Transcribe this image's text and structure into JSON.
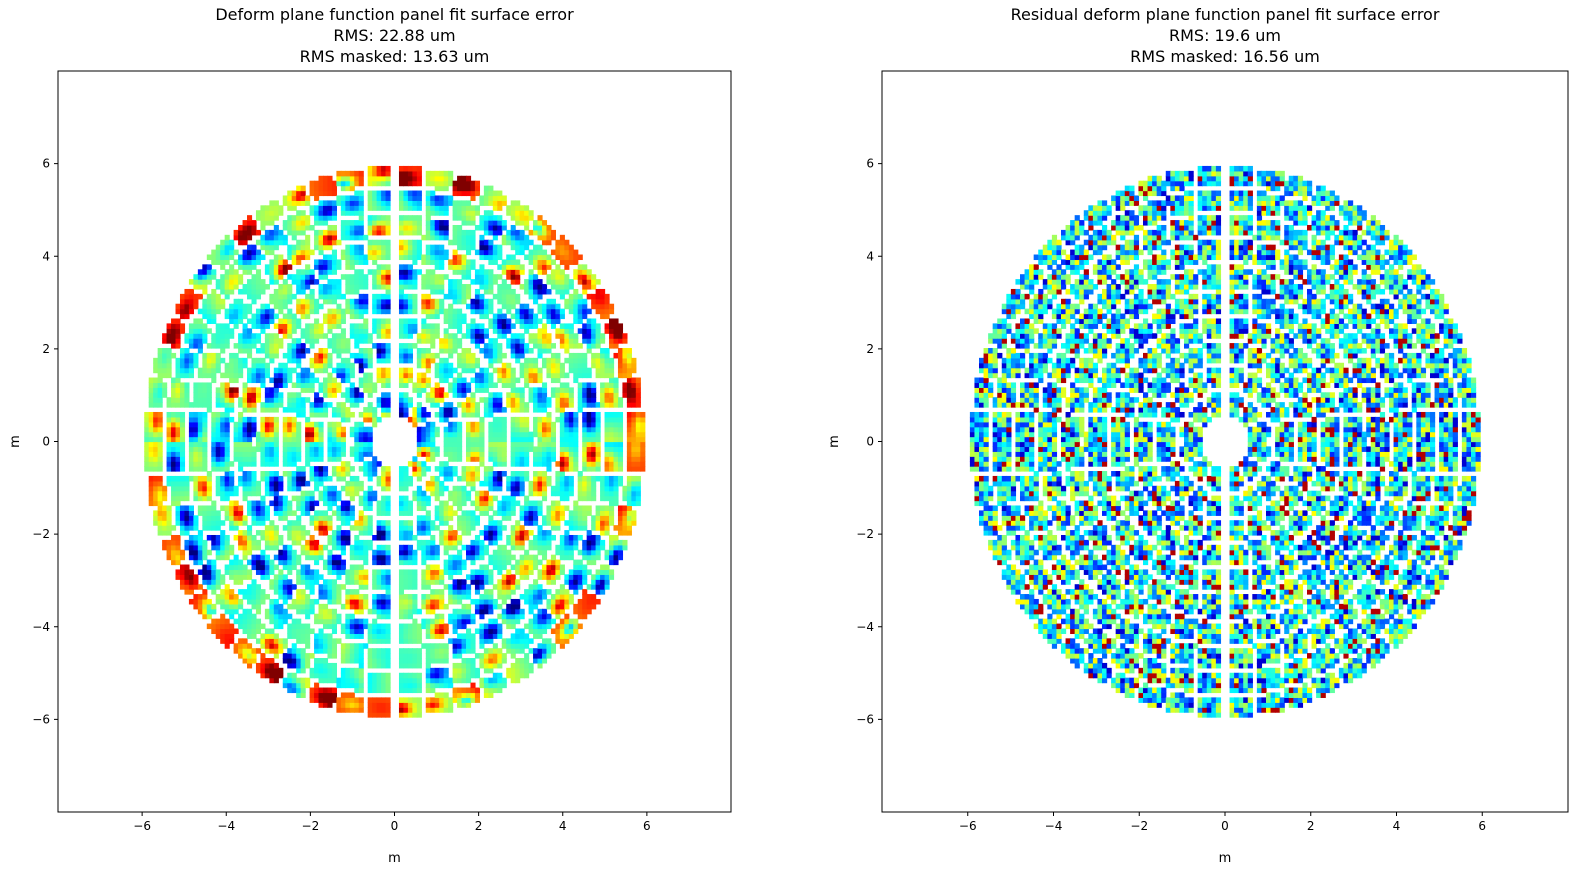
{
  "chart_data": [
    {
      "type": "heatmap",
      "title_lines": [
        "Deform plane function panel fit surface error",
        "RMS: 22.88 um",
        "RMS masked: 13.63 um"
      ],
      "xlabel": "m",
      "ylabel": "m",
      "xlim": [
        -8,
        8
      ],
      "ylim": [
        -8,
        8
      ],
      "xticks": [
        -6,
        -4,
        -2,
        0,
        2,
        4,
        6
      ],
      "yticks": [
        -6,
        -4,
        -2,
        0,
        2,
        4,
        6
      ],
      "xtick_labels": [
        "−6",
        "−4",
        "−2",
        "0",
        "2",
        "4",
        "6"
      ],
      "ytick_labels": [
        "−6",
        "−4",
        "−2",
        "0",
        "2",
        "4",
        "6"
      ],
      "grid": false,
      "colormap": "jet",
      "pattern": "smooth",
      "rings": [
        {
          "r_in": 0.55,
          "r_out": 1.05,
          "panels": 12
        },
        {
          "r_in": 1.15,
          "r_out": 1.6,
          "panels": 20
        },
        {
          "r_in": 1.7,
          "r_out": 2.15,
          "panels": 24
        },
        {
          "r_in": 2.25,
          "r_out": 2.7,
          "panels": 28
        },
        {
          "r_in": 2.8,
          "r_out": 3.25,
          "panels": 32
        },
        {
          "r_in": 3.35,
          "r_out": 3.8,
          "panels": 36
        },
        {
          "r_in": 3.9,
          "r_out": 4.35,
          "panels": 40
        },
        {
          "r_in": 4.45,
          "r_out": 4.9,
          "panels": 44
        },
        {
          "r_in": 5.0,
          "r_out": 5.45,
          "panels": 48
        },
        {
          "r_in": 5.55,
          "r_out": 5.95,
          "panels": 52
        }
      ]
    },
    {
      "type": "heatmap",
      "title_lines": [
        "Residual deform plane function panel fit surface error",
        "RMS: 19.6 um",
        "RMS masked: 16.56 um"
      ],
      "xlabel": "m",
      "ylabel": "m",
      "xlim": [
        -8,
        8
      ],
      "ylim": [
        -8,
        8
      ],
      "xticks": [
        -6,
        -4,
        -2,
        0,
        2,
        4,
        6
      ],
      "yticks": [
        -6,
        -4,
        -2,
        0,
        2,
        4,
        6
      ],
      "xtick_labels": [
        "−6",
        "−4",
        "−2",
        "0",
        "2",
        "4",
        "6"
      ],
      "ytick_labels": [
        "−6",
        "−4",
        "−2",
        "0",
        "2",
        "4",
        "6"
      ],
      "grid": false,
      "colormap": "jet",
      "pattern": "noise",
      "rings": [
        {
          "r_in": 0.55,
          "r_out": 1.05,
          "panels": 12
        },
        {
          "r_in": 1.15,
          "r_out": 1.6,
          "panels": 20
        },
        {
          "r_in": 1.7,
          "r_out": 2.15,
          "panels": 24
        },
        {
          "r_in": 2.25,
          "r_out": 2.7,
          "panels": 28
        },
        {
          "r_in": 2.8,
          "r_out": 3.25,
          "panels": 32
        },
        {
          "r_in": 3.35,
          "r_out": 3.8,
          "panels": 36
        },
        {
          "r_in": 3.9,
          "r_out": 4.35,
          "panels": 40
        },
        {
          "r_in": 4.45,
          "r_out": 4.9,
          "panels": 44
        },
        {
          "r_in": 5.0,
          "r_out": 5.45,
          "panels": 48
        },
        {
          "r_in": 5.55,
          "r_out": 5.95,
          "panels": 52
        }
      ]
    }
  ]
}
